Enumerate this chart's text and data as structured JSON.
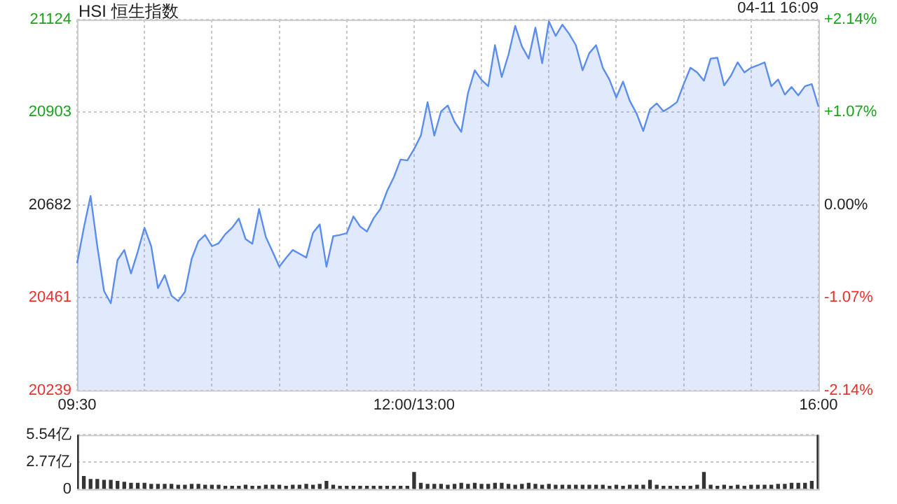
{
  "chart_data": [
    {
      "type": "area",
      "title": "HSI 恒生指数",
      "annotations": [
        "04-11 16:09"
      ],
      "categories": [
        "09:30",
        null,
        null,
        null,
        null,
        null,
        null,
        null,
        null,
        null,
        null,
        null,
        null,
        null,
        null,
        null,
        null,
        null,
        null,
        null,
        null,
        null,
        null,
        null,
        null,
        null,
        null,
        null,
        null,
        null,
        null,
        null,
        null,
        null,
        null,
        null,
        null,
        null,
        null,
        null,
        null,
        null,
        null,
        null,
        null,
        null,
        null,
        null,
        null,
        null,
        "12:00/13:00",
        null,
        null,
        null,
        null,
        null,
        null,
        null,
        null,
        null,
        null,
        null,
        null,
        null,
        null,
        null,
        null,
        null,
        null,
        null,
        null,
        null,
        null,
        null,
        null,
        null,
        null,
        null,
        null,
        null,
        null,
        null,
        null,
        null,
        null,
        null,
        null,
        null,
        null,
        null,
        null,
        null,
        null,
        null,
        null,
        null,
        null,
        null,
        null,
        null,
        null,
        null,
        null,
        null,
        null,
        null,
        null,
        null,
        null,
        null,
        "16:00"
      ],
      "series": [
        {
          "color": "#5b8def",
          "values": [
            20542,
            20627,
            20703,
            20583,
            20476,
            20447,
            20550,
            20574,
            20518,
            20570,
            20627,
            20583,
            20483,
            20514,
            20465,
            20452,
            20474,
            20553,
            20595,
            20610,
            20583,
            20590,
            20612,
            20627,
            20649,
            20600,
            20589,
            20672,
            20605,
            20570,
            20534,
            20555,
            20574,
            20565,
            20556,
            20615,
            20635,
            20534,
            20607,
            20610,
            20614,
            20654,
            20630,
            20618,
            20650,
            20672,
            20715,
            20748,
            20790,
            20788,
            20815,
            20847,
            20927,
            20847,
            20905,
            20919,
            20880,
            20856,
            20949,
            21003,
            20980,
            20965,
            21063,
            20987,
            21040,
            21109,
            21060,
            21031,
            21105,
            21020,
            21120,
            21085,
            21112,
            21090,
            21063,
            21003,
            21044,
            21063,
            21009,
            20980,
            20938,
            20976,
            20930,
            20900,
            20858,
            20910,
            20924,
            20905,
            20915,
            20927,
            20970,
            21009,
            20998,
            20978,
            21031,
            21033,
            20967,
            20990,
            21022,
            20998,
            21009,
            21015,
            21022,
            20965,
            20981,
            20945,
            20963,
            20943,
            20965,
            20970,
            20916
          ]
        }
      ],
      "ylim": [
        20239,
        21124
      ],
      "yticks": [
        20239,
        20461,
        20682,
        20903,
        21124
      ],
      "y2lim": [
        -2.14,
        2.14
      ],
      "y2ticks": [
        {
          "value": -2.14,
          "label": "-2.14%"
        },
        {
          "value": -1.07,
          "label": "-1.07%"
        },
        {
          "value": 0,
          "label": "0.00%"
        },
        {
          "value": 1.07,
          "label": "+1.07%"
        },
        {
          "value": 2.14,
          "label": "+2.14%"
        }
      ],
      "grid": true,
      "legend": false
    },
    {
      "type": "bar",
      "categories": [
        null,
        null,
        null,
        null,
        null,
        null,
        null,
        null,
        null,
        null,
        null,
        null,
        null,
        null,
        null,
        null,
        null,
        null,
        null,
        null,
        null,
        null,
        null,
        null,
        null,
        null,
        null,
        null,
        null,
        null,
        null,
        null,
        null,
        null,
        null,
        null,
        null,
        null,
        null,
        null,
        null,
        null,
        null,
        null,
        null,
        null,
        null,
        null,
        null,
        null,
        null,
        null,
        null,
        null,
        null,
        null,
        null,
        null,
        null,
        null,
        null,
        null,
        null,
        null,
        null,
        null,
        null,
        null,
        null,
        null,
        null,
        null,
        null,
        null,
        null,
        null,
        null,
        null,
        null,
        null,
        null,
        null,
        null,
        null,
        null,
        null,
        null,
        null,
        null,
        null,
        null,
        null,
        null,
        null,
        null,
        null,
        null,
        null,
        null,
        null,
        null,
        null,
        null,
        null,
        null,
        null,
        null,
        null,
        null,
        null,
        null
      ],
      "series": [
        {
          "color": "#333333",
          "values": [
            5.5,
            1.3,
            1.0,
            1.0,
            0.9,
            0.9,
            0.8,
            0.7,
            0.6,
            0.6,
            0.6,
            0.5,
            0.5,
            0.5,
            0.5,
            0.4,
            0.4,
            0.5,
            0.5,
            0.4,
            0.4,
            0.4,
            0.3,
            0.3,
            0.3,
            0.4,
            0.3,
            0.3,
            0.4,
            0.4,
            0.4,
            0.3,
            0.4,
            0.4,
            0.5,
            0.4,
            0.5,
            0.8,
            0.4,
            0.3,
            0.3,
            0.3,
            0.3,
            0.3,
            0.3,
            0.3,
            0.3,
            0.3,
            0.3,
            0.3,
            1.7,
            0.6,
            0.5,
            0.5,
            0.5,
            0.4,
            0.5,
            0.6,
            0.5,
            0.6,
            0.5,
            0.5,
            0.6,
            0.6,
            0.5,
            0.4,
            0.5,
            0.6,
            0.5,
            0.4,
            0.5,
            0.4,
            0.4,
            0.4,
            0.4,
            0.4,
            0.4,
            0.4,
            0.4,
            0.3,
            0.4,
            0.3,
            0.4,
            0.4,
            0.4,
            0.9,
            0.4,
            0.3,
            0.3,
            0.3,
            0.3,
            0.3,
            0.4,
            1.7,
            0.4,
            0.3,
            0.4,
            0.3,
            0.4,
            0.3,
            0.4,
            0.4,
            0.4,
            0.4,
            0.5,
            0.5,
            0.6,
            0.6,
            0.6,
            0.8,
            5.5
          ]
        }
      ],
      "ylim": [
        0,
        5.54
      ],
      "yticks": [
        {
          "value": 0,
          "label": "0"
        },
        {
          "value": 2.77,
          "label": "2.77亿"
        },
        {
          "value": 5.54,
          "label": "5.54亿"
        }
      ],
      "tick_labels": "y",
      "grid": "y",
      "legend": false
    }
  ]
}
